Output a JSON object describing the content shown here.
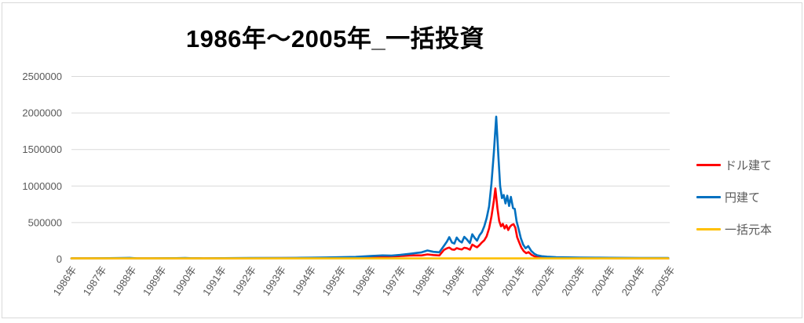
{
  "chart_data": {
    "type": "line",
    "title": "1986年～2005年_一括投資",
    "legend_position": "right",
    "grid": true,
    "background": "#FFFFFF",
    "colors": {
      "gridline": "#D9D9D9",
      "axis_text": "#595959",
      "title_text": "#000000",
      "frame_border": "#D9D9D9"
    },
    "y_axis": {
      "min": 0,
      "max": 2500000,
      "step": 500000,
      "tick_labels": [
        "0",
        "500000",
        "1000000",
        "1500000",
        "2000000",
        "2500000"
      ]
    },
    "x_axis": {
      "start_year": 1986,
      "end_year": 2006,
      "tick_labels": [
        "1986年",
        "1987年",
        "1988年",
        "1989年",
        "1990年",
        "1991年",
        "1992年",
        "1993年",
        "1994年",
        "1995年",
        "1996年",
        "1997年",
        "1998年",
        "1999年",
        "2000年",
        "2001年",
        "2002年",
        "2003年",
        "2004年",
        "2004年",
        "2005年"
      ]
    },
    "series": [
      {
        "id": "usd",
        "name": "ドル建て",
        "color": "#FF0000",
        "points": [
          [
            1986.0,
            10000
          ],
          [
            1987.0,
            10800
          ],
          [
            1987.75,
            12500
          ],
          [
            1988.2,
            10500
          ],
          [
            1989.0,
            10800
          ],
          [
            1989.8,
            11500
          ],
          [
            1990.4,
            10500
          ],
          [
            1991.1,
            11500
          ],
          [
            1992.0,
            12500
          ],
          [
            1993.0,
            13500
          ],
          [
            1994.0,
            15000
          ],
          [
            1994.5,
            17000
          ],
          [
            1995.0,
            20000
          ],
          [
            1995.5,
            23000
          ],
          [
            1996.0,
            30000
          ],
          [
            1996.5,
            34000
          ],
          [
            1997.0,
            42000
          ],
          [
            1997.3,
            48000
          ],
          [
            1997.55,
            52000
          ],
          [
            1997.7,
            50000
          ],
          [
            1997.9,
            64000
          ],
          [
            1998.1,
            56000
          ],
          [
            1998.3,
            50000
          ],
          [
            1998.45,
            125000
          ],
          [
            1998.55,
            148000
          ],
          [
            1998.63,
            158000
          ],
          [
            1998.72,
            132000
          ],
          [
            1998.8,
            128000
          ],
          [
            1998.88,
            150000
          ],
          [
            1998.97,
            138000
          ],
          [
            1999.05,
            132000
          ],
          [
            1999.13,
            156000
          ],
          [
            1999.22,
            148000
          ],
          [
            1999.32,
            130000
          ],
          [
            1999.4,
            198000
          ],
          [
            1999.48,
            178000
          ],
          [
            1999.56,
            162000
          ],
          [
            1999.64,
            192000
          ],
          [
            1999.72,
            228000
          ],
          [
            1999.8,
            258000
          ],
          [
            1999.88,
            312000
          ],
          [
            1999.96,
            420000
          ],
          [
            2000.04,
            580000
          ],
          [
            2000.12,
            800000
          ],
          [
            2000.17,
            968000
          ],
          [
            2000.24,
            700000
          ],
          [
            2000.3,
            520000
          ],
          [
            2000.36,
            448000
          ],
          [
            2000.42,
            482000
          ],
          [
            2000.48,
            420000
          ],
          [
            2000.54,
            462000
          ],
          [
            2000.6,
            398000
          ],
          [
            2000.66,
            442000
          ],
          [
            2000.72,
            468000
          ],
          [
            2000.78,
            478000
          ],
          [
            2000.84,
            428000
          ],
          [
            2000.9,
            298000
          ],
          [
            2000.97,
            225000
          ],
          [
            2001.04,
            158000
          ],
          [
            2001.12,
            108000
          ],
          [
            2001.2,
            82000
          ],
          [
            2001.28,
            95000
          ],
          [
            2001.38,
            58000
          ],
          [
            2001.48,
            38000
          ],
          [
            2001.6,
            28000
          ],
          [
            2001.75,
            23000
          ],
          [
            2001.95,
            19000
          ],
          [
            2002.3,
            16500
          ],
          [
            2003.0,
            14000
          ],
          [
            2004.0,
            12500
          ],
          [
            2005.0,
            11500
          ],
          [
            2005.95,
            11000
          ]
        ]
      },
      {
        "id": "jpy",
        "name": "円建て",
        "color": "#0070C0",
        "points": [
          [
            1986.0,
            10000
          ],
          [
            1986.5,
            10500
          ],
          [
            1987.0,
            11500
          ],
          [
            1987.5,
            13500
          ],
          [
            1987.75,
            16000
          ],
          [
            1987.95,
            17000
          ],
          [
            1988.15,
            12000
          ],
          [
            1988.6,
            11000
          ],
          [
            1989.0,
            11500
          ],
          [
            1989.5,
            12500
          ],
          [
            1989.8,
            14500
          ],
          [
            1990.05,
            12000
          ],
          [
            1990.4,
            11000
          ],
          [
            1990.8,
            11500
          ],
          [
            1991.1,
            13000
          ],
          [
            1991.5,
            14000
          ],
          [
            1992.0,
            15000
          ],
          [
            1992.5,
            15500
          ],
          [
            1993.0,
            16500
          ],
          [
            1993.5,
            17500
          ],
          [
            1994.0,
            19000
          ],
          [
            1994.5,
            22000
          ],
          [
            1995.0,
            27000
          ],
          [
            1995.5,
            30000
          ],
          [
            1996.0,
            42000
          ],
          [
            1996.4,
            50000
          ],
          [
            1996.7,
            47000
          ],
          [
            1997.0,
            58000
          ],
          [
            1997.3,
            72000
          ],
          [
            1997.55,
            85000
          ],
          [
            1997.7,
            92000
          ],
          [
            1997.9,
            118000
          ],
          [
            1998.1,
            100000
          ],
          [
            1998.3,
            93000
          ],
          [
            1998.45,
            180000
          ],
          [
            1998.55,
            240000
          ],
          [
            1998.63,
            300000
          ],
          [
            1998.72,
            228000
          ],
          [
            1998.8,
            212000
          ],
          [
            1998.88,
            295000
          ],
          [
            1998.97,
            248000
          ],
          [
            1999.05,
            228000
          ],
          [
            1999.13,
            305000
          ],
          [
            1999.22,
            268000
          ],
          [
            1999.32,
            218000
          ],
          [
            1999.4,
            340000
          ],
          [
            1999.48,
            290000
          ],
          [
            1999.56,
            252000
          ],
          [
            1999.64,
            325000
          ],
          [
            1999.72,
            368000
          ],
          [
            1999.8,
            450000
          ],
          [
            1999.88,
            560000
          ],
          [
            1999.96,
            720000
          ],
          [
            2000.04,
            1030000
          ],
          [
            2000.12,
            1460000
          ],
          [
            2000.2,
            1950000
          ],
          [
            2000.27,
            1420000
          ],
          [
            2000.33,
            1000000
          ],
          [
            2000.39,
            835000
          ],
          [
            2000.45,
            878000
          ],
          [
            2000.51,
            762000
          ],
          [
            2000.57,
            868000
          ],
          [
            2000.63,
            728000
          ],
          [
            2000.69,
            852000
          ],
          [
            2000.76,
            698000
          ],
          [
            2000.82,
            688000
          ],
          [
            2000.88,
            520000
          ],
          [
            2000.95,
            408000
          ],
          [
            2001.02,
            288000
          ],
          [
            2001.1,
            198000
          ],
          [
            2001.18,
            148000
          ],
          [
            2001.27,
            178000
          ],
          [
            2001.37,
            112000
          ],
          [
            2001.47,
            74000
          ],
          [
            2001.57,
            52000
          ],
          [
            2001.72,
            40000
          ],
          [
            2001.9,
            33000
          ],
          [
            2002.2,
            27000
          ],
          [
            2002.6,
            23500
          ],
          [
            2003.0,
            21500
          ],
          [
            2003.5,
            19500
          ],
          [
            2004.0,
            18000
          ],
          [
            2004.5,
            17000
          ],
          [
            2005.0,
            16000
          ],
          [
            2005.5,
            15500
          ],
          [
            2005.95,
            15000
          ]
        ]
      },
      {
        "id": "principal",
        "name": "一括元本",
        "color": "#FFC000",
        "points": [
          [
            1986.0,
            10000
          ],
          [
            2005.95,
            10000
          ]
        ]
      }
    ]
  }
}
